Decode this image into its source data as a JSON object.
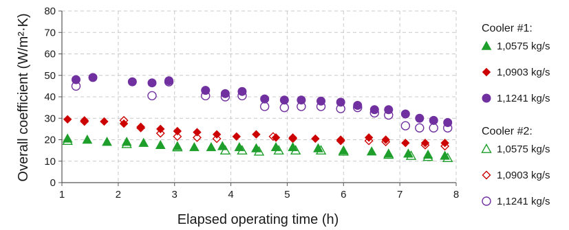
{
  "chart_data": {
    "type": "scatter",
    "title": "",
    "xlabel": "Elapsed operating time (h)",
    "ylabel": "Overall coefficient (W/m²·K)",
    "xlim": [
      1,
      8
    ],
    "ylim": [
      0,
      80
    ],
    "x_ticks": [
      "1",
      "2",
      "3",
      "4",
      "5",
      "6",
      "7",
      "8"
    ],
    "y_ticks": [
      "0",
      "10",
      "20",
      "30",
      "40",
      "50",
      "60",
      "70",
      "80"
    ],
    "grid": true,
    "legend_position": "right",
    "legend_groups": [
      {
        "heading": "Cooler #1:",
        "series": [
          {
            "name": "1,0575 kg/s",
            "marker": "triangle",
            "filled": true,
            "color": "#1e9e2a",
            "points": [
              [
                1.1,
                20.5
              ],
              [
                1.45,
                20
              ],
              [
                1.8,
                19
              ],
              [
                2.15,
                19
              ],
              [
                2.45,
                18.5
              ],
              [
                2.75,
                17.5
              ],
              [
                3.05,
                17
              ],
              [
                3.35,
                16.5
              ],
              [
                3.65,
                16.5
              ],
              [
                3.85,
                17
              ],
              [
                4.15,
                16.5
              ],
              [
                4.45,
                16
              ],
              [
                4.8,
                16.5
              ],
              [
                5.1,
                16.5
              ],
              [
                5.55,
                16
              ],
              [
                6.0,
                15
              ],
              [
                6.5,
                14.5
              ],
              [
                6.8,
                13.5
              ],
              [
                7.15,
                13.5
              ],
              [
                7.5,
                13
              ],
              [
                7.8,
                12.5
              ]
            ]
          },
          {
            "name": "1,0903 kg/s",
            "marker": "diamond",
            "filled": true,
            "color": "#cc0000",
            "points": [
              [
                1.1,
                29.5
              ],
              [
                1.4,
                29
              ],
              [
                1.75,
                28.5
              ],
              [
                2.1,
                27.5
              ],
              [
                2.4,
                26
              ],
              [
                2.75,
                25
              ],
              [
                3.05,
                24
              ],
              [
                3.4,
                23.5
              ],
              [
                3.75,
                22.5
              ],
              [
                4.1,
                21.5
              ],
              [
                4.45,
                22.5
              ],
              [
                4.8,
                21
              ],
              [
                5.1,
                21
              ],
              [
                5.5,
                20.5
              ],
              [
                5.95,
                20
              ],
              [
                6.45,
                21
              ],
              [
                6.75,
                20
              ],
              [
                7.1,
                18.5
              ],
              [
                7.45,
                18.5
              ],
              [
                7.8,
                18.5
              ]
            ]
          },
          {
            "name": "1,1241 kg/s",
            "marker": "circle",
            "filled": true,
            "color": "#7030a0",
            "points": [
              [
                1.25,
                48
              ],
              [
                1.55,
                49
              ],
              [
                2.25,
                47
              ],
              [
                2.6,
                46.5
              ],
              [
                2.9,
                47.5
              ],
              [
                3.55,
                43
              ],
              [
                3.9,
                41.5
              ],
              [
                4.2,
                42.5
              ],
              [
                4.6,
                39
              ],
              [
                4.95,
                38.5
              ],
              [
                5.25,
                38.5
              ],
              [
                5.6,
                38
              ],
              [
                5.95,
                37.5
              ],
              [
                6.25,
                36
              ],
              [
                6.55,
                34
              ],
              [
                6.8,
                34
              ],
              [
                7.1,
                32
              ],
              [
                7.35,
                30
              ],
              [
                7.6,
                29
              ],
              [
                7.85,
                28
              ]
            ]
          }
        ]
      },
      {
        "heading": "Cooler #2:",
        "series": [
          {
            "name": "1,0575 kg/s",
            "marker": "triangle",
            "filled": false,
            "color": "#1e9e2a",
            "points": [
              [
                1.1,
                19.5
              ],
              [
                2.15,
                18
              ],
              [
                3.05,
                16.5
              ],
              [
                3.9,
                15
              ],
              [
                4.2,
                15
              ],
              [
                4.5,
                14.5
              ],
              [
                4.85,
                15
              ],
              [
                5.15,
                15
              ],
              [
                5.6,
                15
              ],
              [
                6.0,
                14.5
              ],
              [
                6.8,
                13
              ],
              [
                7.2,
                12.5
              ],
              [
                7.5,
                12
              ],
              [
                7.85,
                11.5
              ]
            ]
          },
          {
            "name": "1,0903 kg/s",
            "marker": "diamond",
            "filled": false,
            "color": "#cc0000",
            "points": [
              [
                1.4,
                28.5
              ],
              [
                2.1,
                29
              ],
              [
                2.4,
                25.5
              ],
              [
                2.75,
                23
              ],
              [
                3.05,
                21.5
              ],
              [
                3.4,
                21
              ],
              [
                3.75,
                20.5
              ],
              [
                4.75,
                21.5
              ],
              [
                5.1,
                20.5
              ],
              [
                5.95,
                19.5
              ],
              [
                6.45,
                19.5
              ],
              [
                6.75,
                19
              ],
              [
                7.45,
                17.5
              ],
              [
                7.8,
                17
              ]
            ]
          },
          {
            "name": "1,1241 kg/s",
            "marker": "circle",
            "filled": false,
            "color": "#7030a0",
            "points": [
              [
                1.25,
                45
              ],
              [
                2.6,
                40.5
              ],
              [
                2.9,
                47
              ],
              [
                3.55,
                40.5
              ],
              [
                3.9,
                40
              ],
              [
                4.2,
                40.5
              ],
              [
                4.6,
                35.5
              ],
              [
                4.95,
                35
              ],
              [
                5.25,
                35.5
              ],
              [
                5.6,
                35.5
              ],
              [
                5.95,
                34.5
              ],
              [
                6.25,
                35
              ],
              [
                6.55,
                32.5
              ],
              [
                6.8,
                31.5
              ],
              [
                7.1,
                26.5
              ],
              [
                7.35,
                25.5
              ],
              [
                7.6,
                25.5
              ],
              [
                7.85,
                25.5
              ]
            ]
          }
        ]
      }
    ]
  }
}
